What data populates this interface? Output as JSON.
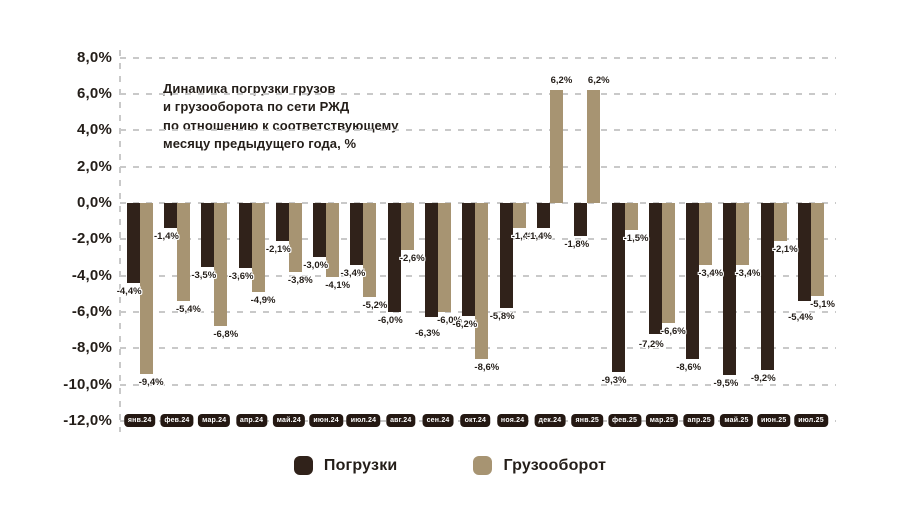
{
  "chart_data": {
    "type": "bar",
    "title": "Динамика погрузки грузов\nи грузооборота по сети РЖД\nпо отношению к соответствующему\nмесяцу предыдущего года, %",
    "categories": [
      "янв.24",
      "фев.24",
      "мар.24",
      "апр.24",
      "май.24",
      "июн.24",
      "июл.24",
      "авг.24",
      "сен.24",
      "окт.24",
      "ноя.24",
      "дек.24",
      "янв.25",
      "фев.25",
      "мар.25",
      "апр.25",
      "май.25",
      "июн.25",
      "июл.25"
    ],
    "series": [
      {
        "name": "Погрузки",
        "color": "#30221a",
        "values": [
          -4.4,
          -1.4,
          -3.5,
          -3.6,
          -2.1,
          -3.0,
          -3.4,
          -6.0,
          -6.3,
          -6.2,
          -5.8,
          -1.4,
          -1.8,
          -9.3,
          -7.2,
          -8.6,
          -9.5,
          -9.2,
          -5.4
        ],
        "labels": [
          "-4,4%",
          "-1,4%",
          "-3,5%",
          "-3,6%",
          "-2,1%",
          "-3,0%",
          "-3,4%",
          "-6,0%",
          "-6,3%",
          "-6,2%",
          "-5,8%",
          "-1,4%",
          "-1,8%",
          "-9,3%",
          "-7,2%",
          "-8,6%",
          "-9,5%",
          "-9,2%",
          "-5,4%"
        ]
      },
      {
        "name": "Грузооборот",
        "color": "#a79472",
        "values": [
          -9.4,
          -5.4,
          -6.8,
          -4.9,
          -3.8,
          -4.1,
          -5.2,
          -2.6,
          -6.0,
          -8.6,
          -1.4,
          6.2,
          6.2,
          -1.5,
          -6.6,
          -3.4,
          -3.4,
          -2.1,
          -5.1
        ],
        "labels": [
          "-9,4%",
          "-5,4%",
          "-6,8%",
          "-4,9%",
          "-3,8%",
          "-4,1%",
          "-5,2%",
          "-2,6%",
          "-6,0%",
          "-8,6%",
          "-1,4%",
          "6,2%",
          "6,2%",
          "-1,5%",
          "-6,6%",
          "-3,4%",
          "-3,4%",
          "-2,1%",
          "-5,1%"
        ]
      }
    ],
    "ylim": [
      -12,
      8
    ],
    "ytick_step": 2,
    "yticks": [
      {
        "value": 8,
        "label": "8,0%"
      },
      {
        "value": 6,
        "label": "6,0%"
      },
      {
        "value": 4,
        "label": "4,0%"
      },
      {
        "value": 2,
        "label": "2,0%"
      },
      {
        "value": 0,
        "label": "0,0%"
      },
      {
        "value": -2,
        "label": "-2,0%"
      },
      {
        "value": -4,
        "label": "-4,0%"
      },
      {
        "value": -6,
        "label": "-6,0%"
      },
      {
        "value": -8,
        "label": "-8,0%"
      },
      {
        "value": -10,
        "label": "-10,0%"
      },
      {
        "value": -12,
        "label": "-12,0%"
      }
    ],
    "grid": "dashed-horizontal",
    "legend_position": "bottom",
    "colors": {
      "background": "#ffffff",
      "gridline": "#c9c9c9",
      "text": "#241e19",
      "month_badge_bg": "#241812",
      "month_badge_text": "#ffffff"
    }
  }
}
